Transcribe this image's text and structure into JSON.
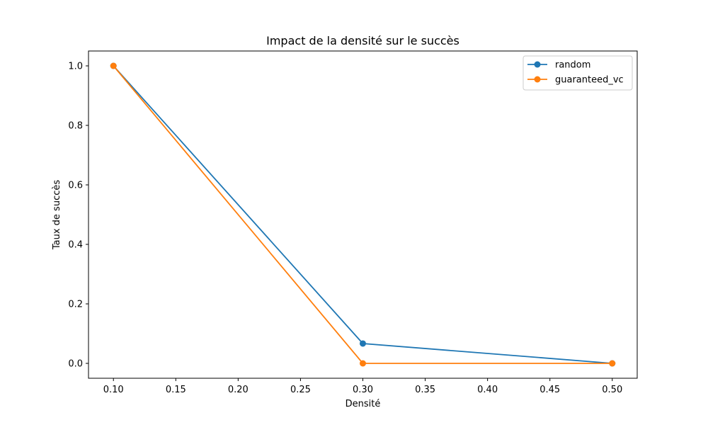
{
  "chart_data": {
    "type": "line",
    "title": "Impact de la densité sur le succès",
    "xlabel": "Densité",
    "ylabel": "Taux de succès",
    "xlim": [
      0.08,
      0.52
    ],
    "ylim": [
      -0.05,
      1.05
    ],
    "xticks": [
      0.1,
      0.15,
      0.2,
      0.25,
      0.3,
      0.35,
      0.4,
      0.45,
      0.5
    ],
    "xtick_labels": [
      "0.10",
      "0.15",
      "0.20",
      "0.25",
      "0.30",
      "0.35",
      "0.40",
      "0.45",
      "0.50"
    ],
    "yticks": [
      0.0,
      0.2,
      0.4,
      0.6,
      0.8,
      1.0
    ],
    "ytick_labels": [
      "0.0",
      "0.2",
      "0.4",
      "0.6",
      "0.8",
      "1.0"
    ],
    "grid": false,
    "legend_position": "top-right",
    "x": [
      0.1,
      0.3,
      0.5
    ],
    "series": [
      {
        "name": "random",
        "values": [
          1.0,
          0.0667,
          0.0
        ],
        "color": "#1f77b4",
        "marker": "circle"
      },
      {
        "name": "guaranteed_vc",
        "values": [
          1.0,
          0.0,
          0.0
        ],
        "color": "#ff7f0e",
        "marker": "circle"
      }
    ]
  }
}
